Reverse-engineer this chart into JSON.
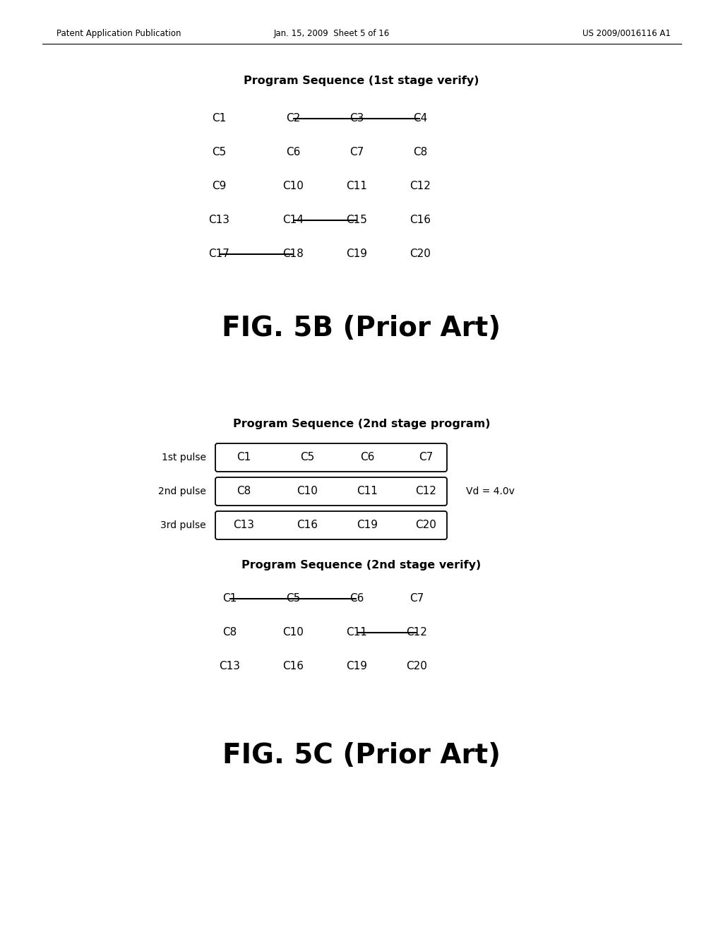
{
  "bg_color": "#ffffff",
  "header_left": "Patent Application Publication",
  "header_center": "Jan. 15, 2009  Sheet 5 of 16",
  "header_right": "US 2009/0016116 A1",
  "header_fontsize": 8.5,
  "fig5b_title": "Program Sequence (1st stage verify)",
  "fig5b_title_fontsize": 11.5,
  "fig5b_rows": [
    {
      "cells": [
        "C1",
        "C2",
        "C3",
        "C4"
      ],
      "strikethrough": [
        false,
        true,
        true,
        true
      ],
      "line_from": 1,
      "line_to": 3
    },
    {
      "cells": [
        "C5",
        "C6",
        "C7",
        "C8"
      ],
      "strikethrough": [
        false,
        false,
        false,
        false
      ],
      "line_from": null,
      "line_to": null
    },
    {
      "cells": [
        "C9",
        "C10",
        "C11",
        "C12"
      ],
      "strikethrough": [
        true,
        false,
        false,
        false
      ],
      "line_from": null,
      "line_to": null
    },
    {
      "cells": [
        "C13",
        "C14",
        "C15",
        "C16"
      ],
      "strikethrough": [
        false,
        true,
        true,
        false
      ],
      "line_from": 1,
      "line_to": 2
    },
    {
      "cells": [
        "C17",
        "C18",
        "C19",
        "C20"
      ],
      "strikethrough": [
        true,
        true,
        false,
        false
      ],
      "line_from": 0,
      "line_to": 1
    }
  ],
  "fig5b_label": "FIG. 5B (Prior Art)",
  "fig5b_label_fontsize": 28,
  "fig5c_prog_title": "Program Sequence (2nd stage program)",
  "fig5c_prog_title_fontsize": 11.5,
  "fig5c_prog_rows": [
    {
      "label": "1st pulse",
      "cells": [
        "C1",
        "C5",
        "C6",
        "C7"
      ]
    },
    {
      "label": "2nd pulse",
      "cells": [
        "C8",
        "C10",
        "C11",
        "C12"
      ]
    },
    {
      "label": "3rd pulse",
      "cells": [
        "C13",
        "C16",
        "C19",
        "C20"
      ]
    }
  ],
  "fig5c_prog_vd": "Vd = 4.0v",
  "fig5c_verify_title": "Program Sequence (2nd stage verify)",
  "fig5c_verify_title_fontsize": 11.5,
  "fig5c_verify_rows": [
    {
      "cells": [
        "C1",
        "C5",
        "C6",
        "C7"
      ],
      "strikethrough": [
        true,
        true,
        true,
        false
      ],
      "line_from": 0,
      "line_to": 2
    },
    {
      "cells": [
        "C8",
        "C10",
        "C11",
        "C12"
      ],
      "strikethrough": [
        false,
        false,
        true,
        true
      ],
      "line_from": 2,
      "line_to": 3
    },
    {
      "cells": [
        "C13",
        "C16",
        "C19",
        "C20"
      ],
      "strikethrough": [
        false,
        false,
        true,
        false
      ],
      "line_from": null,
      "line_to": null
    }
  ],
  "fig5c_label": "FIG. 5C (Prior Art)",
  "fig5c_label_fontsize": 28,
  "cell_fontsize": 11,
  "pulse_label_fontsize": 10,
  "vd_fontsize": 10
}
